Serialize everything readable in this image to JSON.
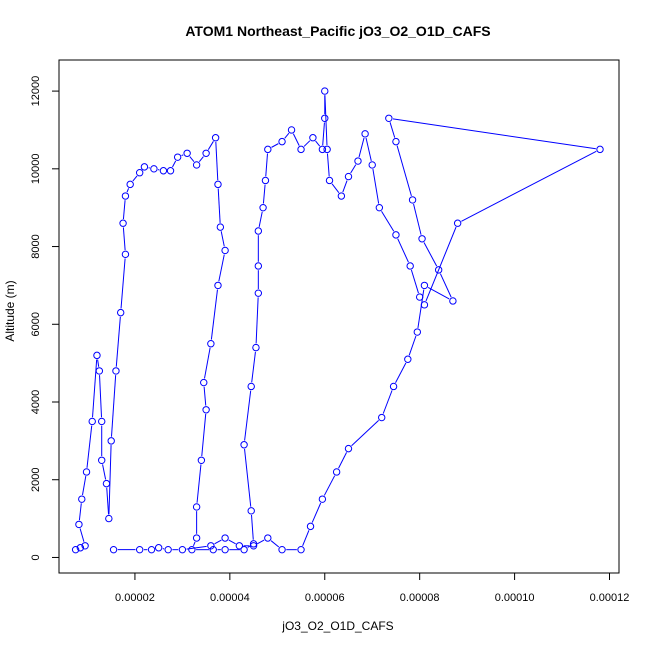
{
  "chart_data": {
    "type": "line",
    "title": "ATOM1 Northeast_Pacific jO3_O2_O1D_CAFS",
    "xlabel": "jO3_O2_O1D_CAFS",
    "ylabel": "Altitude (m)",
    "xlim": [
      4e-06,
      0.000122
    ],
    "ylim": [
      -400,
      12800
    ],
    "xticks": [
      2e-05,
      4e-05,
      6e-05,
      8e-05,
      0.0001,
      0.00012
    ],
    "xtick_labels": [
      "0.00002",
      "0.00004",
      "0.00006",
      "0.00008",
      "0.00010",
      "0.00012"
    ],
    "yticks": [
      0,
      2000,
      4000,
      6000,
      8000,
      10000,
      12000
    ],
    "ytick_labels": [
      "0",
      "2000",
      "4000",
      "6000",
      "8000",
      "10000",
      "12000"
    ],
    "grid": false,
    "series_color": "#0000ff",
    "series": [
      {
        "style": "lines+open-circles",
        "points": [
          [
            7.5e-06,
            200
          ],
          [
            8.5e-06,
            250
          ],
          [
            9.5e-06,
            300
          ],
          [
            8.2e-06,
            850
          ],
          [
            8.8e-06,
            1500
          ],
          [
            9.8e-06,
            2200
          ],
          [
            1.1e-05,
            3500
          ],
          [
            1.2e-05,
            5200
          ],
          [
            1.25e-05,
            4800
          ],
          [
            1.3e-05,
            3500
          ],
          [
            1.3e-05,
            2500
          ],
          [
            1.4e-05,
            1900
          ],
          [
            1.45e-05,
            1000
          ],
          [
            1.5e-05,
            3000
          ],
          [
            1.6e-05,
            4800
          ],
          [
            1.7e-05,
            6300
          ],
          [
            1.8e-05,
            7800
          ],
          [
            1.75e-05,
            8600
          ],
          [
            1.8e-05,
            9300
          ],
          [
            1.9e-05,
            9600
          ],
          [
            2.1e-05,
            9900
          ],
          [
            2.2e-05,
            10050
          ],
          [
            2.4e-05,
            10000
          ],
          [
            2.6e-05,
            9950
          ],
          [
            2.75e-05,
            9950
          ],
          [
            2.9e-05,
            10300
          ],
          [
            3.1e-05,
            10400
          ],
          [
            3.3e-05,
            10100
          ],
          [
            3.5e-05,
            10400
          ],
          [
            3.7e-05,
            10800
          ],
          [
            3.75e-05,
            9600
          ],
          [
            3.8e-05,
            8500
          ],
          [
            3.9e-05,
            7900
          ],
          [
            3.75e-05,
            7000
          ],
          [
            3.6e-05,
            5500
          ],
          [
            3.45e-05,
            4500
          ],
          [
            3.5e-05,
            3800
          ],
          [
            3.4e-05,
            2500
          ],
          [
            3.3e-05,
            1300
          ],
          [
            3.3e-05,
            500
          ],
          [
            3.2e-05,
            200
          ],
          [
            3.65e-05,
            200
          ],
          [
            3.9e-05,
            200
          ],
          [
            4.3e-05,
            200
          ],
          [
            4.5e-05,
            350
          ],
          [
            4.45e-05,
            1200
          ],
          [
            4.3e-05,
            2900
          ],
          [
            4.45e-05,
            4400
          ],
          [
            4.55e-05,
            5400
          ],
          [
            4.6e-05,
            6800
          ],
          [
            4.6e-05,
            7500
          ],
          [
            4.6e-05,
            8400
          ],
          [
            4.7e-05,
            9000
          ],
          [
            4.75e-05,
            9700
          ],
          [
            4.8e-05,
            10500
          ],
          [
            5.1e-05,
            10700
          ],
          [
            5.3e-05,
            11000
          ],
          [
            5.5e-05,
            10500
          ],
          [
            5.75e-05,
            10800
          ],
          [
            5.95e-05,
            10500
          ],
          [
            6e-05,
            11300
          ],
          [
            6e-05,
            12000
          ],
          [
            6.05e-05,
            10500
          ],
          [
            6.1e-05,
            9700
          ],
          [
            6.35e-05,
            9300
          ],
          [
            6.5e-05,
            9800
          ],
          [
            6.7e-05,
            10200
          ],
          [
            6.85e-05,
            10900
          ],
          [
            7e-05,
            10100
          ],
          [
            7.15e-05,
            9000
          ],
          [
            7.5e-05,
            8300
          ],
          [
            7.8e-05,
            7500
          ],
          [
            8e-05,
            6700
          ],
          [
            8.1e-05,
            6500
          ],
          [
            8.8e-05,
            8600
          ],
          [
            0.000118,
            10500
          ],
          [
            7.35e-05,
            11300
          ],
          [
            7.5e-05,
            10700
          ],
          [
            7.85e-05,
            9200
          ],
          [
            8.05e-05,
            8200
          ],
          [
            8.4e-05,
            7400
          ],
          [
            8.7e-05,
            6600
          ],
          [
            8.1e-05,
            7000
          ],
          [
            7.95e-05,
            5800
          ],
          [
            7.75e-05,
            5100
          ],
          [
            7.45e-05,
            4400
          ],
          [
            7.2e-05,
            3600
          ],
          [
            6.5e-05,
            2800
          ],
          [
            6.25e-05,
            2200
          ],
          [
            5.95e-05,
            1500
          ],
          [
            5.7e-05,
            800
          ],
          [
            5.5e-05,
            200
          ],
          [
            5.1e-05,
            200
          ],
          [
            4.8e-05,
            500
          ],
          [
            4.5e-05,
            300
          ],
          [
            4.2e-05,
            300
          ],
          [
            3.9e-05,
            500
          ],
          [
            3.6e-05,
            300
          ],
          [
            3e-05,
            200
          ],
          [
            2.7e-05,
            200
          ],
          [
            2.5e-05,
            250
          ],
          [
            2.35e-05,
            200
          ],
          [
            2.1e-05,
            200
          ],
          [
            1.55e-05,
            200
          ]
        ]
      }
    ]
  }
}
